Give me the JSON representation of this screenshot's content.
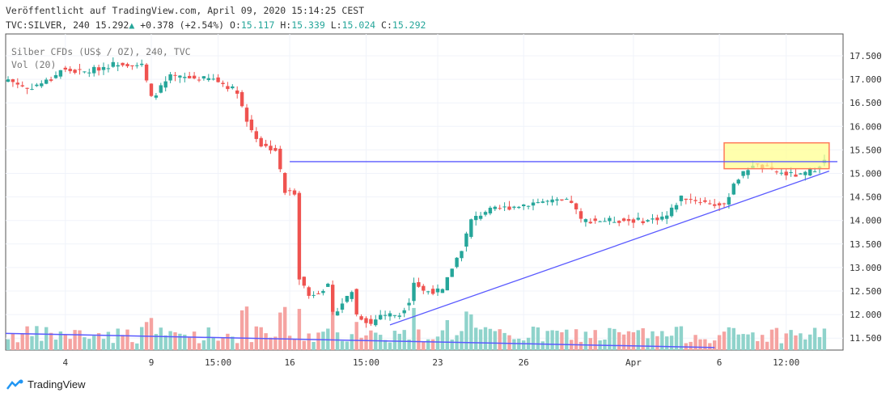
{
  "header": {
    "published": "Veröffentlicht auf TradingView.com, April 09, 2020 15:14:25 CEST",
    "symbol": "TVC:SILVER, 240",
    "last": "15.292",
    "change": "+0.378 (+2.54%)",
    "o_label": "O:",
    "o": "15.117",
    "h_label": "H:",
    "h": "15.339",
    "l_label": "L:",
    "l": "15.024",
    "c_label": "C:",
    "c": "15.292"
  },
  "legend": {
    "series": "Silber CFDs (US$ / OZ), 240, TVC",
    "volume": "Vol (20)"
  },
  "logo": "TradingView",
  "colors": {
    "up": "#26a69a",
    "down": "#ef5350",
    "up_vol": "#8fd3cb",
    "down_vol": "#f5a3a1",
    "line": "#5a5aff",
    "box": "#ffff8a"
  },
  "chart_data": {
    "type": "candlestick",
    "ylim": [
      11.3,
      17.9
    ],
    "y_ticks": [
      "17.500",
      "17.000",
      "16.500",
      "16.000",
      "15.500",
      "15.000",
      "14.500",
      "14.000",
      "13.500",
      "13.000",
      "12.500",
      "12.000",
      "11.500"
    ],
    "x_ticks": [
      {
        "label": "4",
        "i": 12
      },
      {
        "label": "9",
        "i": 30
      },
      {
        "label": "15:00",
        "i": 44
      },
      {
        "label": "16",
        "i": 59
      },
      {
        "label": "15:00",
        "i": 75
      },
      {
        "label": "23",
        "i": 90
      },
      {
        "label": "26",
        "i": 108
      },
      {
        "label": "Apr",
        "i": 131
      },
      {
        "label": "6",
        "i": 149
      },
      {
        "label": "12:00",
        "i": 163
      }
    ],
    "close_anchors": [
      [
        0,
        17.0
      ],
      [
        4,
        16.8
      ],
      [
        9,
        17.0
      ],
      [
        11,
        17.2
      ],
      [
        16,
        17.15
      ],
      [
        23,
        17.35
      ],
      [
        28,
        17.3
      ],
      [
        30,
        16.6
      ],
      [
        34,
        17.05
      ],
      [
        43,
        17.0
      ],
      [
        48,
        16.75
      ],
      [
        50,
        16.1
      ],
      [
        53,
        15.6
      ],
      [
        56,
        15.5
      ],
      [
        58,
        14.6
      ],
      [
        60,
        14.6
      ],
      [
        61,
        12.8
      ],
      [
        63,
        12.4
      ],
      [
        67,
        12.6
      ],
      [
        68,
        12.0
      ],
      [
        72,
        12.5
      ],
      [
        73,
        12.0
      ],
      [
        76,
        11.8
      ],
      [
        78,
        12.0
      ],
      [
        82,
        12.0
      ],
      [
        84,
        12.3
      ],
      [
        85,
        12.7
      ],
      [
        87,
        12.5
      ],
      [
        91,
        12.5
      ],
      [
        93,
        13.0
      ],
      [
        95,
        13.4
      ],
      [
        97,
        14.0
      ],
      [
        100,
        14.2
      ],
      [
        106,
        14.3
      ],
      [
        111,
        14.4
      ],
      [
        118,
        14.4
      ],
      [
        120,
        14.0
      ],
      [
        124,
        14.0
      ],
      [
        134,
        14.0
      ],
      [
        138,
        14.1
      ],
      [
        141,
        14.5
      ],
      [
        150,
        14.3
      ],
      [
        152,
        14.8
      ],
      [
        156,
        15.2
      ],
      [
        159,
        15.1
      ],
      [
        162,
        15.0
      ],
      [
        166,
        14.95
      ],
      [
        169,
        15.1
      ],
      [
        171,
        15.29
      ]
    ],
    "resistance": 15.25,
    "trendline": [
      [
        80,
        11.78
      ],
      [
        172,
        15.05
      ]
    ],
    "long_trendline": [
      [
        0,
        11.6
      ],
      [
        148,
        11.3
      ]
    ],
    "zone": {
      "from_i": 150,
      "to_i": 172,
      "top": 15.65,
      "bottom": 15.1
    }
  }
}
